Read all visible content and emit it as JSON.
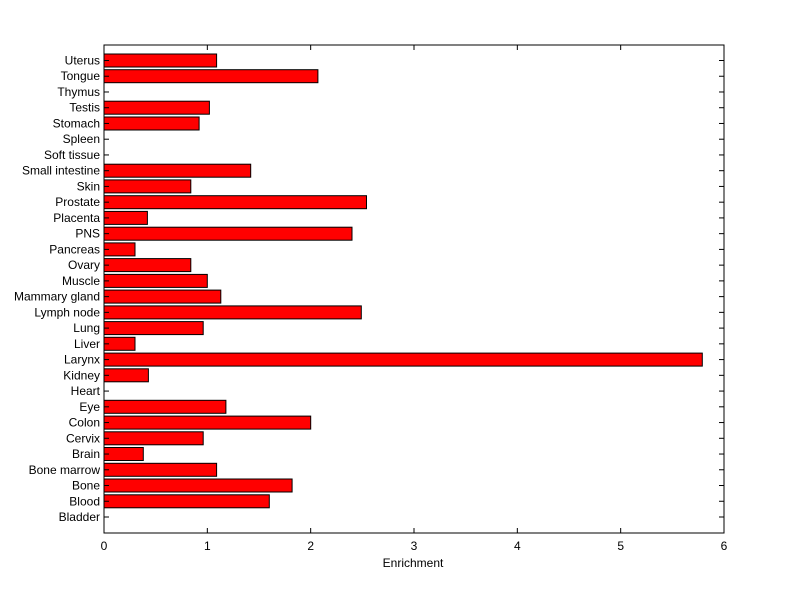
{
  "chart_data": {
    "type": "bar",
    "orientation": "horizontal",
    "title": "",
    "xlabel": "Enrichment",
    "ylabel": "",
    "xlim": [
      0,
      6
    ],
    "xticks": [
      "0",
      "1",
      "2",
      "3",
      "4",
      "5",
      "6"
    ],
    "grid": false,
    "legend": "none",
    "bar_color": "#ff0000",
    "bar_edge_color": "#000000",
    "categories": [
      "Bladder",
      "Blood",
      "Bone",
      "Bone marrow",
      "Brain",
      "Cervix",
      "Colon",
      "Eye",
      "Heart",
      "Kidney",
      "Larynx",
      "Liver",
      "Lung",
      "Lymph node",
      "Mammary gland",
      "Muscle",
      "Ovary",
      "Pancreas",
      "PNS",
      "Placenta",
      "Prostate",
      "Skin",
      "Small intestine",
      "Soft tissue",
      "Spleen",
      "Stomach",
      "Testis",
      "Thymus",
      "Tongue",
      "Uterus"
    ],
    "values": [
      0,
      1.6,
      1.82,
      1.09,
      0.38,
      0.96,
      2.0,
      1.18,
      0,
      0.43,
      5.79,
      0.3,
      0.96,
      2.49,
      1.13,
      1.0,
      0.84,
      0.3,
      2.4,
      0.42,
      2.54,
      0.84,
      1.42,
      0,
      0,
      0.92,
      1.02,
      0,
      2.07,
      1.09
    ]
  }
}
